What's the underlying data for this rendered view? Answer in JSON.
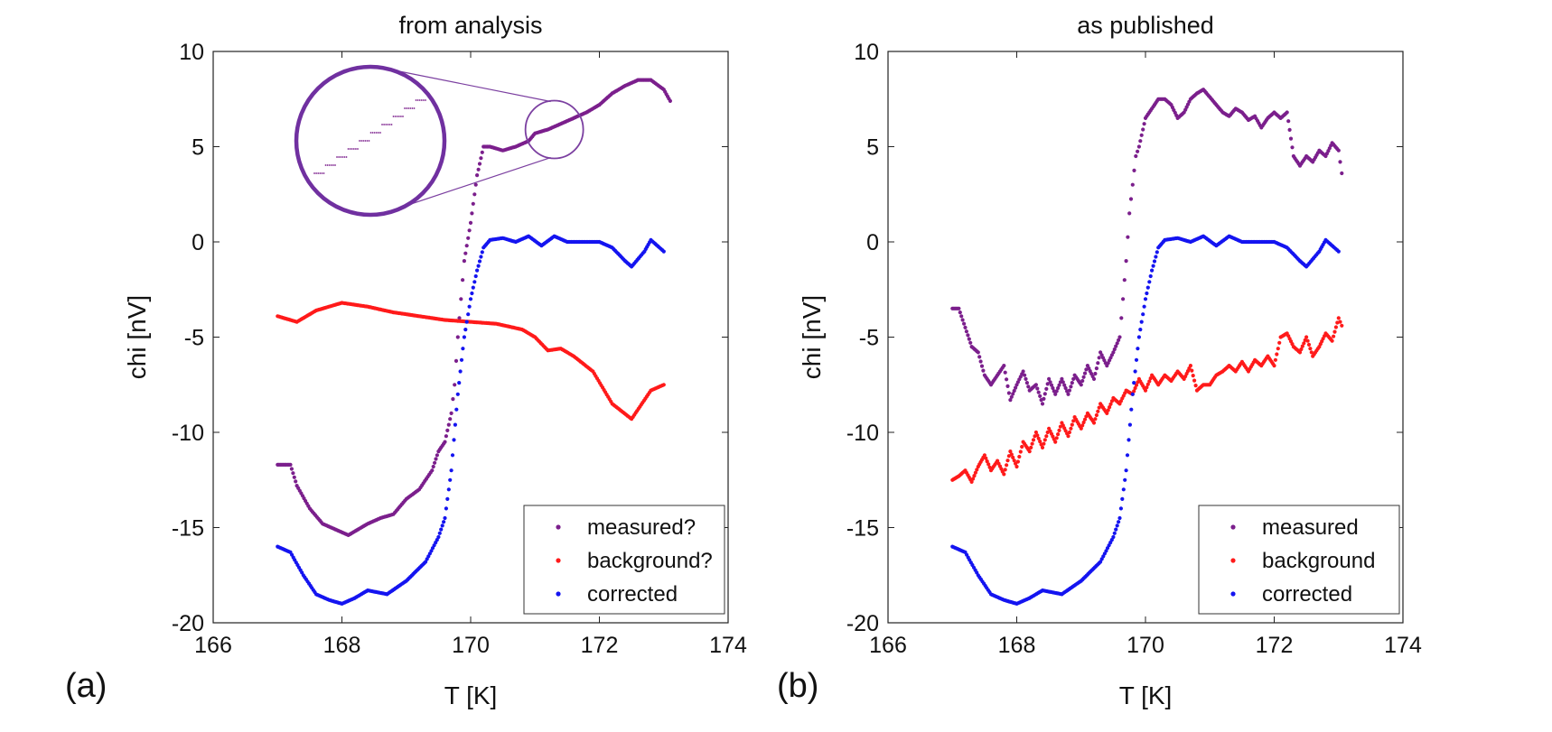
{
  "chart_data": [
    {
      "type": "scatter",
      "panel_label": "(a)",
      "title": "from analysis",
      "xlabel": "T [K]",
      "ylabel": "chi [nV]",
      "xlim": [
        166,
        174
      ],
      "ylim": [
        -20,
        10
      ],
      "xticks": [
        166,
        168,
        170,
        172,
        174
      ],
      "yticks": [
        10,
        5,
        0,
        -5,
        -10,
        -15,
        -20
      ],
      "legend_position": "bottom-right",
      "zoom_inset": {
        "center": [
          171.3,
          5.9
        ],
        "description": "magnified view showing step-like quantized points"
      },
      "series": [
        {
          "name": "measured?",
          "color": "#7B1F8C",
          "x": [
            167.0,
            167.2,
            167.3,
            167.5,
            167.7,
            167.9,
            168.1,
            168.4,
            168.6,
            168.8,
            169.0,
            169.2,
            169.4,
            169.5,
            169.6,
            169.7,
            169.75,
            169.8,
            169.85,
            169.9,
            170.0,
            170.1,
            170.2,
            170.3,
            170.5,
            170.7,
            170.9,
            171.0,
            171.2,
            171.4,
            171.6,
            171.8,
            172.0,
            172.2,
            172.4,
            172.6,
            172.8,
            173.0,
            173.1
          ],
          "y": [
            -11.7,
            -11.7,
            -12.8,
            -14.0,
            -14.8,
            -15.1,
            -15.4,
            -14.8,
            -14.5,
            -14.3,
            -13.5,
            -13.0,
            -12.0,
            -11.0,
            -10.5,
            -9.0,
            -7.5,
            -5.0,
            -3.0,
            -1.0,
            1.0,
            3.5,
            5.0,
            5.0,
            4.8,
            5.0,
            5.3,
            5.7,
            5.9,
            6.2,
            6.5,
            6.8,
            7.2,
            7.8,
            8.2,
            8.5,
            8.5,
            8.0,
            7.4
          ]
        },
        {
          "name": "background?",
          "color": "#FF1A1A",
          "x": [
            167.0,
            167.3,
            167.6,
            168.0,
            168.4,
            168.8,
            169.2,
            169.6,
            170.0,
            170.4,
            170.8,
            171.0,
            171.2,
            171.4,
            171.6,
            171.9,
            172.2,
            172.5,
            172.8,
            173.0
          ],
          "y": [
            -3.9,
            -4.2,
            -3.6,
            -3.2,
            -3.4,
            -3.7,
            -3.9,
            -4.1,
            -4.2,
            -4.3,
            -4.6,
            -5.0,
            -5.7,
            -5.6,
            -6.0,
            -6.8,
            -8.5,
            -9.3,
            -7.8,
            -7.5
          ]
        },
        {
          "name": "corrected",
          "color": "#1414F0",
          "x": [
            167.0,
            167.2,
            167.4,
            167.6,
            167.8,
            168.0,
            168.2,
            168.4,
            168.7,
            169.0,
            169.3,
            169.5,
            169.6,
            169.7,
            169.8,
            169.9,
            170.0,
            170.1,
            170.2,
            170.3,
            170.5,
            170.7,
            170.9,
            171.1,
            171.3,
            171.5,
            171.8,
            172.0,
            172.2,
            172.4,
            172.5,
            172.7,
            172.8,
            173.0
          ],
          "y": [
            -16.0,
            -16.3,
            -17.5,
            -18.5,
            -18.8,
            -19.0,
            -18.7,
            -18.3,
            -18.5,
            -17.8,
            -16.8,
            -15.5,
            -14.5,
            -12.0,
            -8.0,
            -5.0,
            -3.0,
            -1.5,
            -0.3,
            0.1,
            0.2,
            0.0,
            0.3,
            -0.2,
            0.3,
            0.0,
            0.0,
            0.0,
            -0.3,
            -1.0,
            -1.3,
            -0.5,
            0.1,
            -0.5
          ]
        }
      ]
    },
    {
      "type": "scatter",
      "panel_label": "(b)",
      "title": "as published",
      "xlabel": "T [K]",
      "ylabel": "chi [nV]",
      "xlim": [
        166,
        174
      ],
      "ylim": [
        -20,
        10
      ],
      "xticks": [
        166,
        168,
        170,
        172,
        174
      ],
      "yticks": [
        10,
        5,
        0,
        -5,
        -10,
        -15,
        -20
      ],
      "legend_position": "bottom-right",
      "series": [
        {
          "name": "measured",
          "color": "#7B1F8C",
          "x": [
            167.0,
            167.1,
            167.2,
            167.3,
            167.4,
            167.5,
            167.6,
            167.7,
            167.8,
            167.9,
            168.0,
            168.1,
            168.2,
            168.3,
            168.4,
            168.5,
            168.6,
            168.7,
            168.8,
            168.9,
            169.0,
            169.1,
            169.2,
            169.3,
            169.4,
            169.5,
            169.6,
            169.65,
            169.7,
            169.75,
            169.8,
            169.85,
            169.9,
            170.0,
            170.1,
            170.2,
            170.3,
            170.4,
            170.5,
            170.6,
            170.7,
            170.8,
            170.9,
            171.0,
            171.1,
            171.2,
            171.3,
            171.4,
            171.5,
            171.6,
            171.7,
            171.8,
            171.9,
            172.0,
            172.1,
            172.2,
            172.3,
            172.4,
            172.5,
            172.6,
            172.7,
            172.8,
            172.9,
            173.0,
            173.05
          ],
          "y": [
            -3.5,
            -3.5,
            -4.5,
            -5.5,
            -5.8,
            -7.0,
            -7.5,
            -7.0,
            -6.5,
            -8.3,
            -7.5,
            -6.8,
            -7.8,
            -7.5,
            -8.5,
            -7.2,
            -8.0,
            -7.2,
            -8.0,
            -7.0,
            -7.5,
            -6.5,
            -7.2,
            -5.8,
            -6.5,
            -5.8,
            -5.0,
            -3.0,
            -1.0,
            1.5,
            3.0,
            4.5,
            5.0,
            6.5,
            7.0,
            7.5,
            7.5,
            7.2,
            6.5,
            6.8,
            7.5,
            7.8,
            8.0,
            7.6,
            7.2,
            6.8,
            6.6,
            7.0,
            6.8,
            6.4,
            6.6,
            6.0,
            6.5,
            6.8,
            6.5,
            6.8,
            4.5,
            4.0,
            4.5,
            4.2,
            4.8,
            4.5,
            5.2,
            4.8,
            3.6
          ]
        },
        {
          "name": "background",
          "color": "#FF1A1A",
          "x": [
            167.0,
            167.1,
            167.2,
            167.3,
            167.4,
            167.5,
            167.6,
            167.7,
            167.8,
            167.9,
            168.0,
            168.1,
            168.2,
            168.3,
            168.4,
            168.5,
            168.6,
            168.7,
            168.8,
            168.9,
            169.0,
            169.1,
            169.2,
            169.3,
            169.4,
            169.5,
            169.6,
            169.7,
            169.8,
            169.9,
            170.0,
            170.1,
            170.2,
            170.3,
            170.4,
            170.5,
            170.6,
            170.7,
            170.8,
            170.9,
            171.0,
            171.1,
            171.2,
            171.3,
            171.4,
            171.5,
            171.6,
            171.7,
            171.8,
            171.9,
            172.0,
            172.1,
            172.2,
            172.3,
            172.4,
            172.5,
            172.6,
            172.7,
            172.8,
            172.9,
            173.0,
            173.05
          ],
          "y": [
            -12.5,
            -12.3,
            -12.0,
            -12.6,
            -11.8,
            -11.2,
            -12.0,
            -11.5,
            -12.2,
            -11.0,
            -11.8,
            -10.5,
            -11.0,
            -10.0,
            -10.8,
            -9.8,
            -10.5,
            -9.5,
            -10.2,
            -9.2,
            -9.8,
            -9.0,
            -9.5,
            -8.5,
            -9.0,
            -8.2,
            -8.5,
            -7.8,
            -8.0,
            -7.2,
            -7.8,
            -7.0,
            -7.5,
            -7.0,
            -7.3,
            -6.8,
            -7.2,
            -6.5,
            -7.8,
            -7.5,
            -7.5,
            -7.0,
            -6.8,
            -6.5,
            -6.8,
            -6.3,
            -6.8,
            -6.2,
            -6.5,
            -6.0,
            -6.5,
            -5.0,
            -4.8,
            -5.5,
            -5.8,
            -5.0,
            -6.0,
            -5.5,
            -4.8,
            -5.2,
            -4.0,
            -4.4
          ]
        },
        {
          "name": "corrected",
          "color": "#1414F0",
          "x": [
            167.0,
            167.2,
            167.4,
            167.6,
            167.8,
            168.0,
            168.2,
            168.4,
            168.7,
            169.0,
            169.3,
            169.5,
            169.6,
            169.7,
            169.8,
            169.9,
            170.0,
            170.1,
            170.2,
            170.3,
            170.5,
            170.7,
            170.9,
            171.1,
            171.3,
            171.5,
            171.8,
            172.0,
            172.2,
            172.4,
            172.5,
            172.7,
            172.8,
            173.0
          ],
          "y": [
            -16.0,
            -16.3,
            -17.5,
            -18.5,
            -18.8,
            -19.0,
            -18.7,
            -18.3,
            -18.5,
            -17.8,
            -16.8,
            -15.5,
            -14.5,
            -12.0,
            -8.0,
            -5.0,
            -3.0,
            -1.5,
            -0.3,
            0.1,
            0.2,
            0.0,
            0.3,
            -0.2,
            0.3,
            0.0,
            0.0,
            0.0,
            -0.3,
            -1.0,
            -1.3,
            -0.5,
            0.1,
            -0.5
          ]
        }
      ]
    }
  ]
}
